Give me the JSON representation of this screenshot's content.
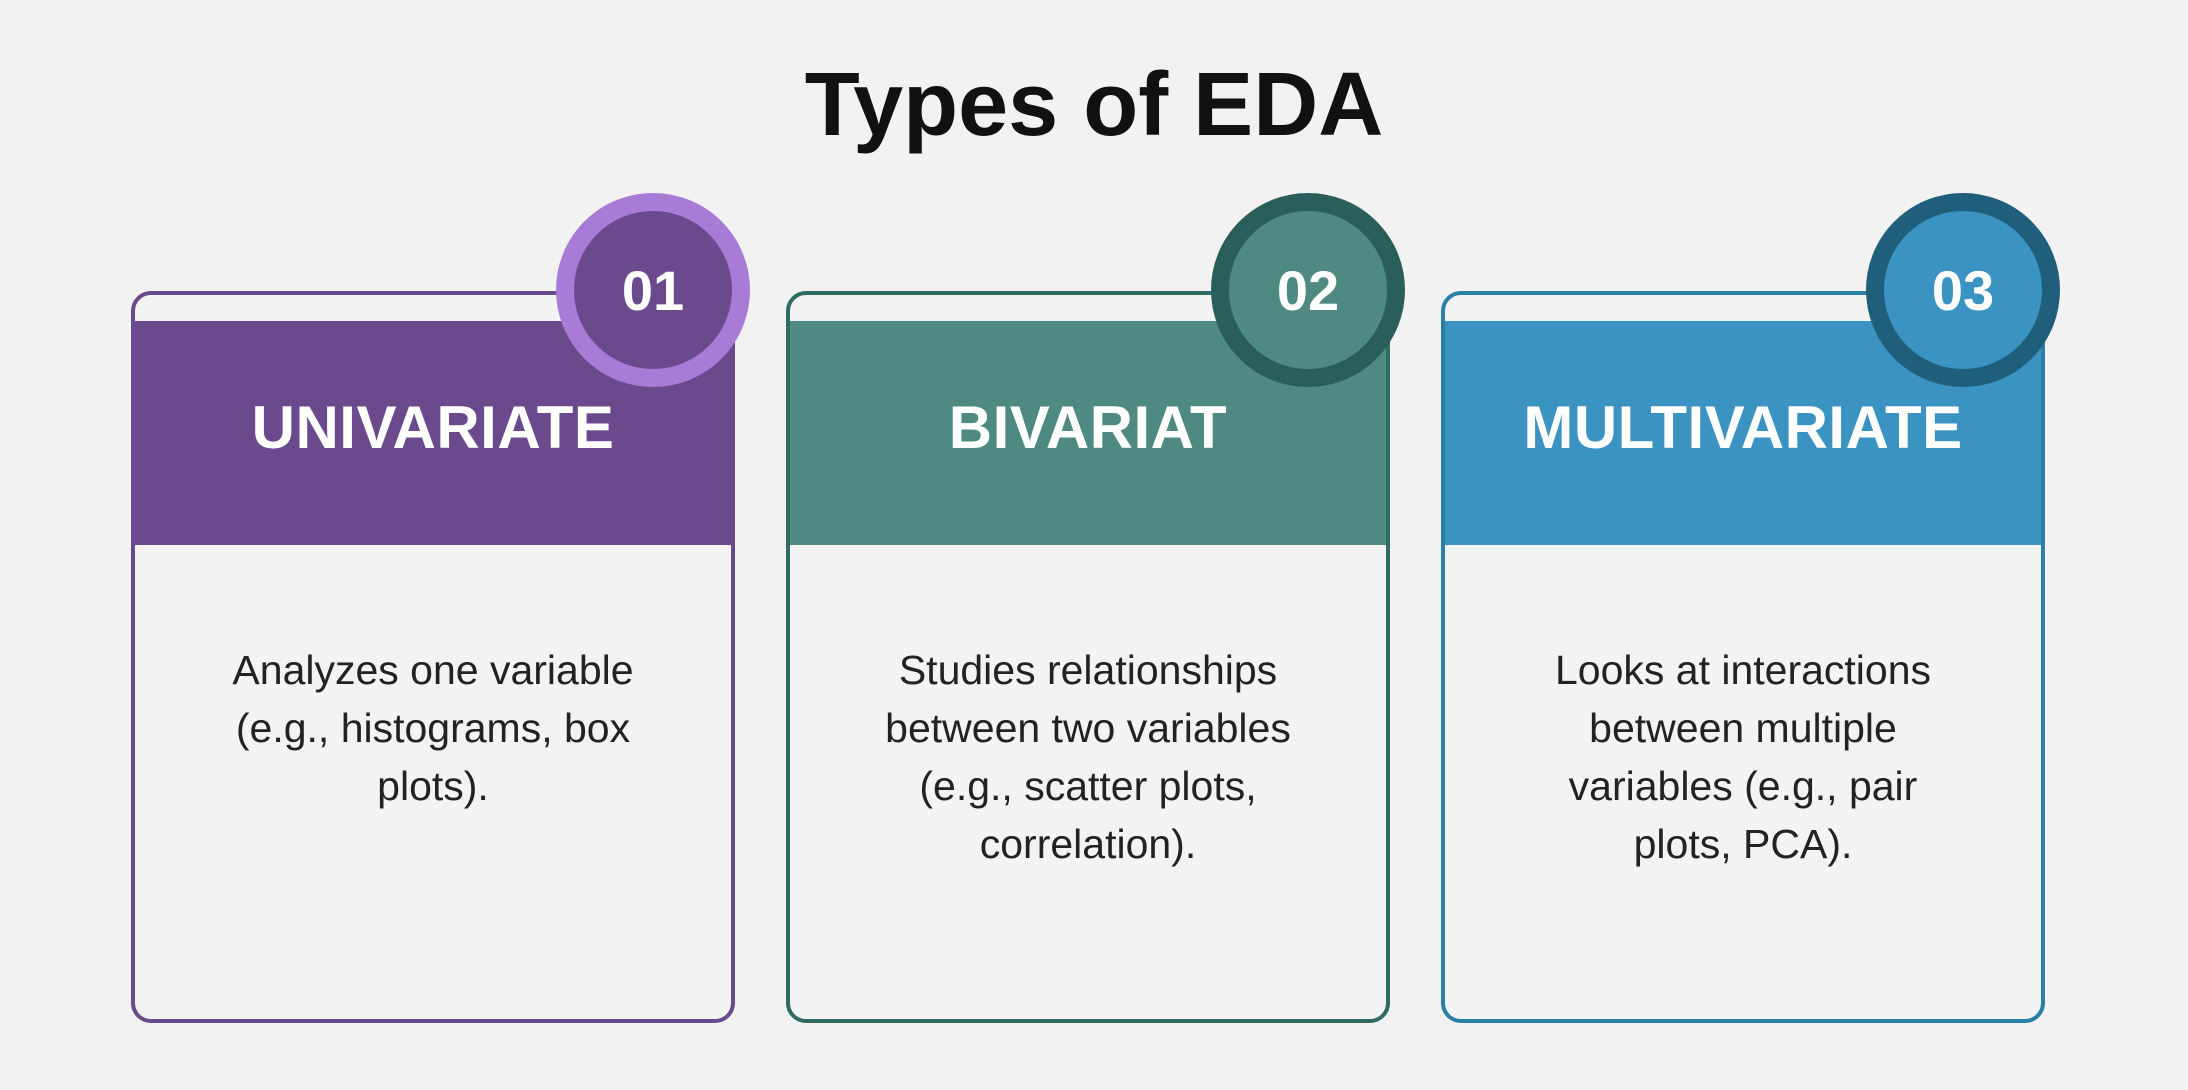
{
  "title": "Types of EDA",
  "colors": {
    "background": "#f2f2f2",
    "univariate": "#6a4a8c",
    "univariate_ring": "#a77bd6",
    "bivariate": "#4f8a82",
    "bivariate_ring": "#2a5e5a",
    "multivariate": "#3a93c0",
    "multivariate_ring": "#1f5f7c"
  },
  "cards": [
    {
      "number": "01",
      "heading": "UNIVARIATE",
      "lines": [
        "Analyzes one variable",
        "(e.g., histograms, box",
        "plots)."
      ]
    },
    {
      "number": "02",
      "heading": "BIVARIAT",
      "lines": [
        "Studies relationships",
        "between two variables",
        "(e.g., scatter plots,",
        "correlation)."
      ]
    },
    {
      "number": "03",
      "heading": "MULTIVARIATE",
      "lines": [
        "Looks at interactions",
        "between multiple",
        "variables (e.g., pair",
        "plots, PCA)."
      ]
    }
  ]
}
